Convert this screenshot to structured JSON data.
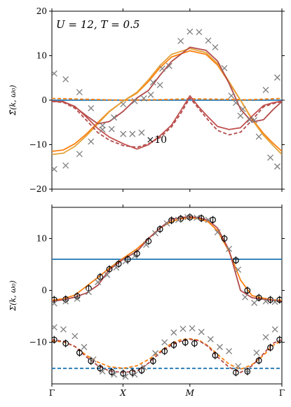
{
  "chart_data": [
    {
      "type": "line",
      "annotation": "U = 12, T = 0.5",
      "ylabel": "Σ̃(k, ω₀)",
      "xlabel": "",
      "ylim": [
        -20,
        20
      ],
      "yticks": [
        -20,
        -10,
        0,
        10,
        20
      ],
      "xlim": [
        0,
        1
      ],
      "x_tick_positions": [
        0,
        0.309,
        0.6,
        1.0
      ],
      "x_tick_labels": [
        "Γ",
        "X",
        "M",
        "Γ"
      ],
      "grid": false,
      "inline_label": "×10",
      "series": [
        {
          "style": "solid",
          "color": "#1f77b4",
          "x": [
            0,
            1
          ],
          "y": [
            0,
            0
          ]
        },
        {
          "style": "dashed",
          "color": "#ff7f0e",
          "x": [
            0,
            0.15,
            0.31,
            0.45,
            0.6,
            0.75,
            0.85,
            1.0
          ],
          "y": [
            0.4,
            0.2,
            0.0,
            0.1,
            0.3,
            0.2,
            0.1,
            0.4
          ]
        },
        {
          "style": "solid",
          "color": "#ff7f0e",
          "x": [
            0,
            0.05,
            0.1,
            0.15,
            0.2,
            0.25,
            0.31,
            0.37,
            0.42,
            0.47,
            0.52,
            0.6,
            0.67,
            0.72,
            0.77,
            0.82,
            0.87,
            0.92,
            0.96,
            1.0
          ],
          "y": [
            -11.5,
            -11.2,
            -9.8,
            -7.6,
            -5.0,
            -2.5,
            -0.2,
            1.6,
            4.2,
            7.3,
            9.7,
            11.1,
            10.3,
            7.9,
            4.0,
            0.0,
            -4.2,
            -7.5,
            -9.6,
            -11.5
          ]
        },
        {
          "style": "solid",
          "color": "#e4a33a",
          "x": [
            0,
            0.05,
            0.1,
            0.15,
            0.2,
            0.25,
            0.31,
            0.37,
            0.42,
            0.47,
            0.52,
            0.6,
            0.67,
            0.72,
            0.77,
            0.82,
            0.87,
            0.92,
            0.96,
            1.0
          ],
          "y": [
            -12.2,
            -11.9,
            -10.4,
            -8.0,
            -5.3,
            -2.6,
            -0.2,
            1.8,
            4.6,
            7.8,
            10.3,
            11.6,
            10.7,
            8.2,
            4.2,
            0.0,
            -4.4,
            -7.9,
            -10.1,
            -12.2
          ]
        },
        {
          "style": "solid",
          "color": "#b24a4a",
          "x": [
            0,
            0.05,
            0.1,
            0.15,
            0.2,
            0.25,
            0.31,
            0.37,
            0.42,
            0.47,
            0.52,
            0.6,
            0.67,
            0.72,
            0.77,
            0.82,
            0.87,
            0.92,
            0.96,
            1.0
          ],
          "y": [
            -0.3,
            -0.3,
            -1.5,
            -3.5,
            -5.3,
            -4.8,
            -2.5,
            0.5,
            2.2,
            5.6,
            8.7,
            11.9,
            11.2,
            8.8,
            3.8,
            -2.0,
            -4.9,
            -4.4,
            -2.2,
            -0.3
          ]
        },
        {
          "style": "dashed",
          "color": "#b24a4a",
          "x": [
            0,
            0.05,
            0.1,
            0.15,
            0.2,
            0.25,
            0.31,
            0.37,
            0.42,
            0.47,
            0.52,
            0.56,
            0.6,
            0.64,
            0.68,
            0.72,
            0.77,
            0.82,
            0.87,
            0.92,
            0.96,
            1.0
          ],
          "y": [
            -0.3,
            -0.5,
            -1.8,
            -4.5,
            -7.3,
            -9.0,
            -10.2,
            -10.6,
            -9.8,
            -8.4,
            -6.0,
            -3.0,
            0.5,
            -2.0,
            -4.5,
            -6.8,
            -7.8,
            -7.2,
            -4.5,
            -1.5,
            -0.8,
            -0.3
          ]
        },
        {
          "style": "solid",
          "color": "#c0504d",
          "x": [
            0,
            0.05,
            0.1,
            0.15,
            0.2,
            0.25,
            0.31,
            0.37,
            0.42,
            0.47,
            0.52,
            0.56,
            0.6,
            0.64,
            0.68,
            0.72,
            0.77,
            0.82,
            0.87,
            0.92,
            0.96,
            1.0
          ],
          "y": [
            -0.2,
            -0.4,
            -1.4,
            -3.8,
            -6.4,
            -8.3,
            -9.8,
            -11.0,
            -10.0,
            -8.0,
            -5.6,
            -2.4,
            1.0,
            -1.6,
            -3.8,
            -5.9,
            -6.6,
            -6.2,
            -3.6,
            -1.2,
            -0.6,
            -0.2
          ]
        }
      ],
      "markers": {
        "symbol": "x",
        "color": "#7f7f7f",
        "points": [
          [
            0.01,
            6.0
          ],
          [
            0.06,
            4.7
          ],
          [
            0.12,
            1.8
          ],
          [
            0.17,
            -1.8
          ],
          [
            0.22,
            -5.7
          ],
          [
            0.26,
            -6.5
          ],
          [
            0.31,
            -7.6
          ],
          [
            0.35,
            -7.6
          ],
          [
            0.39,
            -7.3
          ],
          [
            0.43,
            1.2
          ],
          [
            0.47,
            3.4
          ],
          [
            0.51,
            7.7
          ],
          [
            0.56,
            13.3
          ],
          [
            0.6,
            15.4
          ],
          [
            0.64,
            15.3
          ],
          [
            0.68,
            13.4
          ],
          [
            0.71,
            11.9
          ],
          [
            0.75,
            7.2
          ],
          [
            0.8,
            -0.6
          ],
          [
            0.83,
            -2.0
          ],
          [
            0.88,
            -4.5
          ],
          [
            0.93,
            2.3
          ],
          [
            0.98,
            5.1
          ],
          [
            0.01,
            -15.5
          ],
          [
            0.06,
            -14.7
          ],
          [
            0.12,
            -12.1
          ],
          [
            0.17,
            -9.3
          ],
          [
            0.22,
            -6.6
          ],
          [
            0.27,
            -3.9
          ],
          [
            0.31,
            -0.9
          ],
          [
            0.36,
            -0.2
          ],
          [
            0.4,
            0.4
          ],
          [
            0.44,
            4.0
          ],
          [
            0.48,
            7.1
          ],
          [
            0.78,
            1.0
          ],
          [
            0.82,
            -3.5
          ],
          [
            0.86,
            -4.4
          ],
          [
            0.9,
            -8.2
          ],
          [
            0.95,
            -12.9
          ],
          [
            0.98,
            -14.9
          ]
        ]
      }
    },
    {
      "type": "line",
      "ylabel": "Σ(k, ω₀)",
      "xlabel": "",
      "ylim": [
        -18,
        16
      ],
      "yticks": [
        -10,
        0,
        10
      ],
      "xlim": [
        0,
        1
      ],
      "x_tick_positions": [
        0,
        0.309,
        0.6,
        1.0
      ],
      "x_tick_labels": [
        "Γ",
        "X",
        "M",
        "Γ"
      ],
      "grid": false,
      "series": [
        {
          "style": "solid",
          "color": "#1f77b4",
          "x": [
            0,
            1
          ],
          "y": [
            6,
            6
          ]
        },
        {
          "style": "dashed",
          "color": "#1f77b4",
          "x": [
            0,
            1
          ],
          "y": [
            -15,
            -15
          ]
        },
        {
          "style": "solid",
          "color": "#ff7f0e",
          "x": [
            0,
            0.05,
            0.1,
            0.15,
            0.2,
            0.25,
            0.31,
            0.37,
            0.42,
            0.47,
            0.52,
            0.56,
            0.6,
            0.64,
            0.68,
            0.72,
            0.77,
            0.82,
            0.87,
            0.92,
            0.96,
            1.0
          ],
          "y": [
            -1.9,
            -1.6,
            -0.9,
            0.8,
            2.5,
            4.3,
            6.2,
            8.0,
            10.0,
            12.0,
            13.3,
            13.8,
            14.0,
            13.8,
            13.2,
            11.5,
            7.5,
            2.0,
            -1.0,
            -1.5,
            -1.8,
            -1.9
          ]
        },
        {
          "style": "solid",
          "color": "#b24a4a",
          "x": [
            0,
            0.05,
            0.1,
            0.15,
            0.2,
            0.25,
            0.31,
            0.37,
            0.42,
            0.47,
            0.52,
            0.56,
            0.6,
            0.64,
            0.68,
            0.72,
            0.77,
            0.82,
            0.87,
            0.92,
            0.96,
            1.0
          ],
          "y": [
            -2.1,
            -1.8,
            -1.3,
            -0.5,
            1.0,
            4.0,
            6.0,
            7.5,
            10.0,
            12.0,
            13.7,
            14.0,
            14.2,
            14.0,
            13.5,
            12.0,
            7.8,
            0.0,
            -1.4,
            -1.7,
            -1.9,
            -2.1
          ]
        },
        {
          "style": "dashed",
          "color": "#ff7f0e",
          "x": [
            0,
            0.05,
            0.1,
            0.15,
            0.2,
            0.25,
            0.31,
            0.37,
            0.42,
            0.47,
            0.52,
            0.56,
            0.6,
            0.64,
            0.68,
            0.72,
            0.77,
            0.82,
            0.87,
            0.92,
            0.96,
            1.0
          ],
          "y": [
            -9.7,
            -9.9,
            -10.8,
            -12.5,
            -13.8,
            -14.7,
            -15.0,
            -14.5,
            -13.3,
            -11.8,
            -10.2,
            -9.5,
            -9.3,
            -9.6,
            -10.7,
            -12.3,
            -14.2,
            -15.2,
            -14.3,
            -12.5,
            -10.6,
            -9.7
          ]
        },
        {
          "style": "dashed",
          "color": "#b24a4a",
          "x": [
            0,
            0.05,
            0.1,
            0.15,
            0.2,
            0.25,
            0.31,
            0.37,
            0.42,
            0.47,
            0.52,
            0.56,
            0.6,
            0.64,
            0.68,
            0.72,
            0.77,
            0.82,
            0.87,
            0.92,
            0.96,
            1.0
          ],
          "y": [
            -9.5,
            -9.8,
            -10.8,
            -12.8,
            -14.5,
            -15.5,
            -15.8,
            -15.5,
            -14.0,
            -12.0,
            -10.5,
            -9.8,
            -9.4,
            -9.7,
            -10.8,
            -12.8,
            -14.8,
            -15.8,
            -14.5,
            -12.2,
            -10.2,
            -9.5
          ]
        }
      ],
      "error_points": {
        "symbol": "circle",
        "color": "#000000",
        "points": [
          [
            0.01,
            -1.8
          ],
          [
            0.06,
            -1.7
          ],
          [
            0.11,
            -1.1
          ],
          [
            0.16,
            0.4
          ],
          [
            0.21,
            2.6
          ],
          [
            0.25,
            4.1
          ],
          [
            0.29,
            5.1
          ],
          [
            0.33,
            6.0
          ],
          [
            0.37,
            7.1
          ],
          [
            0.42,
            9.5
          ],
          [
            0.47,
            11.8
          ],
          [
            0.52,
            13.5
          ],
          [
            0.56,
            13.8
          ],
          [
            0.6,
            14.1
          ],
          [
            0.65,
            13.9
          ],
          [
            0.7,
            13.6
          ],
          [
            0.75,
            10.0
          ],
          [
            0.8,
            5.8
          ],
          [
            0.85,
            0.0
          ],
          [
            0.9,
            -1.4
          ],
          [
            0.95,
            -1.8
          ],
          [
            0.99,
            -1.8
          ],
          [
            0.01,
            -9.5
          ],
          [
            0.06,
            -10.2
          ],
          [
            0.12,
            -12.0
          ],
          [
            0.17,
            -13.6
          ],
          [
            0.21,
            -15.0
          ],
          [
            0.26,
            -15.7
          ],
          [
            0.31,
            -16.0
          ],
          [
            0.35,
            -15.8
          ],
          [
            0.39,
            -15.4
          ],
          [
            0.44,
            -13.6
          ],
          [
            0.49,
            -11.7
          ],
          [
            0.53,
            -10.5
          ],
          [
            0.58,
            -10.0
          ],
          [
            0.62,
            -10.2
          ],
          [
            0.71,
            -12.5
          ],
          [
            0.8,
            -15.8
          ],
          [
            0.85,
            -15.6
          ],
          [
            0.9,
            -13.5
          ],
          [
            0.95,
            -11.0
          ],
          [
            0.99,
            -9.5
          ]
        ]
      },
      "markers": {
        "symbol": "x",
        "color": "#7f7f7f",
        "points": [
          [
            0.01,
            -2.5
          ],
          [
            0.06,
            -2.1
          ],
          [
            0.11,
            -1.6
          ],
          [
            0.16,
            -0.3
          ],
          [
            0.2,
            1.6
          ],
          [
            0.24,
            3.0
          ],
          [
            0.28,
            4.4
          ],
          [
            0.32,
            5.6
          ],
          [
            0.36,
            6.6
          ],
          [
            0.41,
            8.8
          ],
          [
            0.45,
            11.0
          ],
          [
            0.5,
            12.9
          ],
          [
            0.55,
            13.6
          ],
          [
            0.59,
            14.1
          ],
          [
            0.63,
            14.0
          ],
          [
            0.68,
            13.6
          ],
          [
            0.72,
            11.2
          ],
          [
            0.77,
            8.0
          ],
          [
            0.81,
            4.0
          ],
          [
            0.84,
            -1.3
          ],
          [
            0.88,
            -2.4
          ],
          [
            0.93,
            -2.1
          ],
          [
            0.97,
            -2.2
          ],
          [
            0.01,
            -7.1
          ],
          [
            0.05,
            -7.5
          ],
          [
            0.1,
            -8.8
          ],
          [
            0.14,
            -10.9
          ],
          [
            0.18,
            -13.3
          ],
          [
            0.22,
            -15.6
          ],
          [
            0.27,
            -16.2
          ],
          [
            0.32,
            -16.6
          ],
          [
            0.36,
            -16.2
          ],
          [
            0.4,
            -14.8
          ],
          [
            0.45,
            -12.1
          ],
          [
            0.49,
            -10.0
          ],
          [
            0.53,
            -8.1
          ],
          [
            0.57,
            -7.4
          ],
          [
            0.61,
            -7.3
          ],
          [
            0.65,
            -8.0
          ],
          [
            0.69,
            -9.4
          ],
          [
            0.73,
            -10.9
          ],
          [
            0.77,
            -11.7
          ],
          [
            0.81,
            -14.6
          ],
          [
            0.85,
            -15.4
          ],
          [
            0.89,
            -12.0
          ],
          [
            0.93,
            -9.0
          ],
          [
            0.97,
            -7.5
          ]
        ]
      }
    }
  ]
}
